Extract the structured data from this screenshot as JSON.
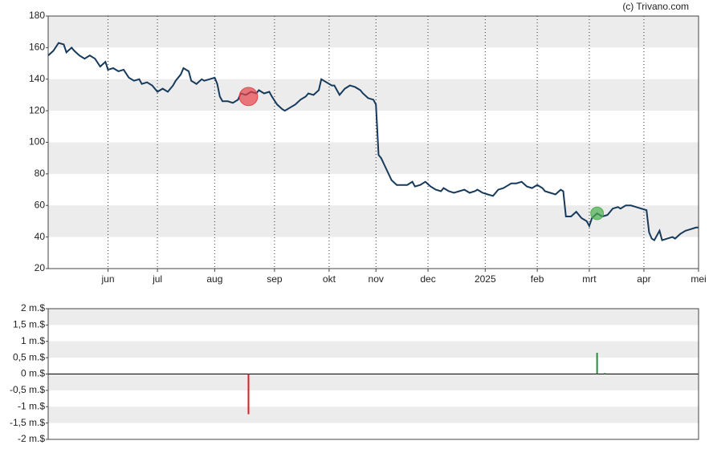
{
  "chart_data": [
    {
      "type": "line",
      "source": "(c) Trivano.com",
      "xlim": [
        0,
        250
      ],
      "xticks": [
        {
          "value": 23,
          "label": "jun"
        },
        {
          "value": 42,
          "label": "jul"
        },
        {
          "value": 64,
          "label": "aug"
        },
        {
          "value": 87,
          "label": "sep"
        },
        {
          "value": 108,
          "label": "okt"
        },
        {
          "value": 126,
          "label": "nov"
        },
        {
          "value": 146,
          "label": "dec"
        },
        {
          "value": 168,
          "label": "2025"
        },
        {
          "value": 188,
          "label": "feb"
        },
        {
          "value": 208,
          "label": "mrt"
        },
        {
          "value": 229,
          "label": "apr"
        },
        {
          "value": 250,
          "label": "mei"
        }
      ],
      "ylim": [
        20,
        180
      ],
      "yticks": [
        20,
        40,
        60,
        80,
        100,
        120,
        140,
        160,
        180
      ],
      "grid": true,
      "band_color": "#ececec",
      "series": [
        {
          "color": "#163a5c",
          "x": [
            0,
            2,
            4,
            6,
            7,
            9,
            10,
            12,
            14,
            16,
            18,
            20,
            22,
            23,
            25,
            27,
            29,
            31,
            33,
            35,
            36,
            38,
            40,
            42,
            44,
            46,
            48,
            49,
            51,
            52,
            54,
            55,
            57,
            59,
            60,
            62,
            64,
            65,
            66,
            67,
            69,
            71,
            73,
            74,
            76,
            78,
            80,
            81,
            83,
            85,
            86,
            88,
            90,
            91,
            93,
            95,
            97,
            99,
            100,
            102,
            104,
            105,
            107,
            109,
            110,
            112,
            114,
            116,
            118,
            120,
            121,
            123,
            125,
            126,
            127,
            128,
            130,
            132,
            134,
            136,
            138,
            140,
            141,
            143,
            145,
            147,
            149,
            151,
            152,
            154,
            156,
            158,
            160,
            162,
            164,
            165,
            167,
            169,
            171,
            173,
            175,
            177,
            178,
            180,
            182,
            184,
            186,
            188,
            190,
            191,
            193,
            195,
            197,
            198,
            199,
            201,
            203,
            205,
            207,
            208,
            209,
            211,
            213,
            215,
            217,
            219,
            220,
            222,
            224,
            226,
            228,
            230,
            231,
            232,
            233,
            235,
            236,
            238,
            240,
            241,
            243,
            245,
            247,
            249,
            250
          ],
          "values": [
            155,
            158,
            163,
            162,
            157,
            160,
            158,
            155,
            153,
            155,
            153,
            148,
            151,
            146,
            147,
            145,
            146,
            141,
            139,
            140,
            137,
            138,
            136,
            132,
            134,
            132,
            136,
            139,
            143,
            147,
            145,
            139,
            137,
            140,
            139,
            140,
            141,
            137,
            129,
            126,
            126,
            125,
            127,
            131,
            130,
            132,
            131,
            133,
            131,
            132,
            129,
            124,
            121,
            120,
            122,
            124,
            127,
            129,
            131,
            130,
            133,
            140,
            138,
            136,
            136,
            130,
            134,
            136,
            135,
            133,
            131,
            128,
            127,
            124,
            92,
            90,
            83,
            76,
            73,
            73,
            73,
            75,
            72,
            73,
            75,
            72,
            70,
            69,
            71,
            69,
            68,
            69,
            70,
            68,
            69,
            70,
            68,
            67,
            66,
            70,
            71,
            73,
            74,
            74,
            75,
            72,
            71,
            73,
            71,
            69,
            68,
            67,
            70,
            69,
            53,
            53,
            56,
            52,
            50,
            47,
            52,
            55,
            53,
            54,
            58,
            59,
            58,
            60,
            60,
            59,
            58,
            57,
            43,
            39,
            38,
            44,
            38,
            39,
            40,
            39,
            42,
            44,
            45,
            46,
            46
          ]
        }
      ],
      "markers": [
        {
          "x": 77,
          "y": 129,
          "color": "#e8424a"
        },
        {
          "x": 211,
          "y": 55,
          "color": "#4caf50"
        }
      ]
    },
    {
      "type": "bar",
      "xlim": [
        0,
        250
      ],
      "ylim": [
        -2,
        2
      ],
      "yticks": [
        {
          "value": -2,
          "label": "-2 m.$"
        },
        {
          "value": -1.5,
          "label": "-1,5 m.$"
        },
        {
          "value": -1,
          "label": "-1 m.$"
        },
        {
          "value": -0.5,
          "label": "-0,5 m.$"
        },
        {
          "value": 0,
          "label": "0 m.$"
        },
        {
          "value": 0.5,
          "label": "0,5 m.$"
        },
        {
          "value": 1,
          "label": "1 m.$"
        },
        {
          "value": 1.5,
          "label": "1,5 m.$"
        },
        {
          "value": 2,
          "label": "2 m.$"
        }
      ],
      "band_color": "#ececec",
      "x": [
        77,
        211,
        214
      ],
      "values": [
        -1.23,
        0.65,
        0.03
      ],
      "colors": [
        "#d81e28",
        "#2a8a3a",
        "#2a8a3a"
      ]
    }
  ]
}
